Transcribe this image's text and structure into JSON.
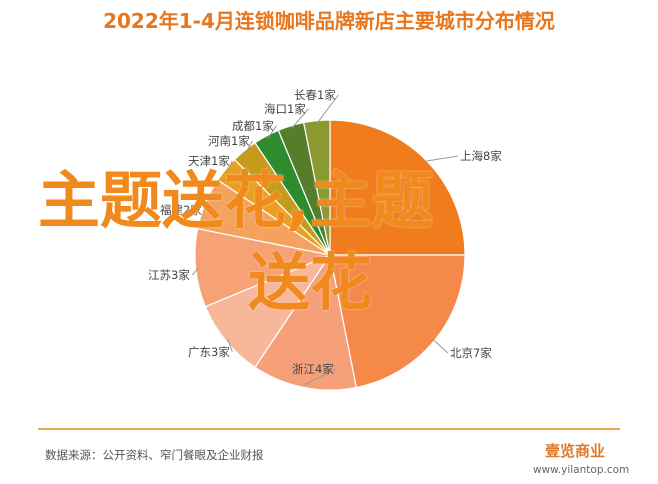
{
  "title": "2022年1-4月连锁咖啡品牌新店主要城市分布情况",
  "chart_data": {
    "type": "pie",
    "title": "2022年1-4月连锁咖啡品牌新店主要城市分布情况",
    "slices": [
      {
        "name": "上海",
        "label": "上海8家",
        "value": 8,
        "color": "#f07c1e"
      },
      {
        "name": "北京",
        "label": "北京7家",
        "value": 7,
        "color": "#f4894a"
      },
      {
        "name": "浙江",
        "label": "浙江4家",
        "value": 4,
        "color": "#f6a07a"
      },
      {
        "name": "广东",
        "label": "广东3家",
        "value": 3,
        "color": "#f8b79a"
      },
      {
        "name": "江苏",
        "label": "江苏3家",
        "value": 3,
        "color": "#f6a176"
      },
      {
        "name": "福建",
        "label": "福建2家",
        "value": 2,
        "color": "#f4a25e"
      },
      {
        "name": "天津",
        "label": "天津1家",
        "value": 1,
        "color": "#e9a020"
      },
      {
        "name": "河南",
        "label": "河南1家",
        "value": 1,
        "color": "#c69a1a"
      },
      {
        "name": "成都",
        "label": "成都1家",
        "value": 1,
        "color": "#2e8b2e"
      },
      {
        "name": "海口",
        "label": "海口1家",
        "value": 1,
        "color": "#567d2a"
      },
      {
        "name": "长春",
        "label": "长春1家",
        "value": 1,
        "color": "#8a9a30"
      }
    ],
    "legend": "none"
  },
  "footer": {
    "source": "数据来源：公开资料、窄门餐眼及企业财报",
    "logo": "壹览商业",
    "url": "www.yilantop.com"
  },
  "watermark": {
    "line1": "主题送花,主题",
    "line2": "送花"
  }
}
